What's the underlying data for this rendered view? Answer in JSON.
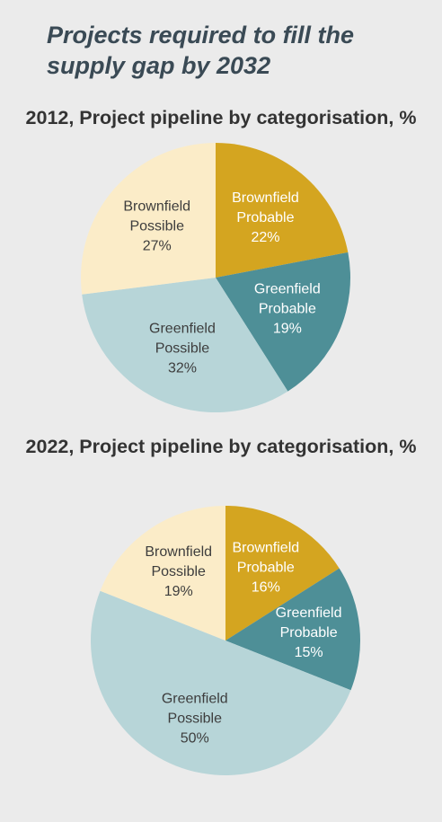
{
  "title": "Projects required to fill the supply gap by 2032",
  "chart_data": [
    {
      "type": "pie",
      "title": "2012, Project pipeline by categorisation, %",
      "slices": [
        {
          "name": "Brownfield Probable",
          "label": [
            "Brownfield",
            "Probable",
            "22%"
          ],
          "value": 22,
          "color": "#d4a520",
          "text_color": "#ffffff"
        },
        {
          "name": "Greenfield Probable",
          "label": [
            "Greenfield",
            "Probable",
            "19%"
          ],
          "value": 19,
          "color": "#4e8f97",
          "text_color": "#ffffff"
        },
        {
          "name": "Greenfield Possible",
          "label": [
            "Greenfield",
            "Possible",
            "32%"
          ],
          "value": 32,
          "color": "#b7d5d8",
          "text_color": "#3d3d3d"
        },
        {
          "name": "Brownfield Possible",
          "label": [
            "Brownfield",
            "Possible",
            "27%"
          ],
          "value": 27,
          "color": "#fbecc8",
          "text_color": "#3d3d3d"
        }
      ]
    },
    {
      "type": "pie",
      "title": "2022, Project pipeline by categorisation, %",
      "slices": [
        {
          "name": "Brownfield Probable",
          "label": [
            "Brownfield",
            "Probable",
            "16%"
          ],
          "value": 16,
          "color": "#d4a520",
          "text_color": "#ffffff"
        },
        {
          "name": "Greenfield Probable",
          "label": [
            "Greenfield",
            "Probable",
            "15%"
          ],
          "value": 15,
          "color": "#4e8f97",
          "text_color": "#ffffff"
        },
        {
          "name": "Greenfield Possible",
          "label": [
            "Greenfield",
            "Possible",
            "50%"
          ],
          "value": 50,
          "color": "#b7d5d8",
          "text_color": "#3d3d3d"
        },
        {
          "name": "Brownfield Possible",
          "label": [
            "Brownfield",
            "Possible",
            "19%"
          ],
          "value": 19,
          "color": "#fbecc8",
          "text_color": "#3d3d3d"
        }
      ]
    }
  ]
}
